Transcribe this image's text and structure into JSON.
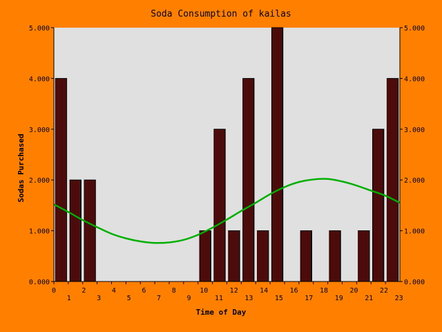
{
  "chart_data": {
    "type": "bar",
    "title": "Soda Consumption of kailas",
    "xlabel": "Time of Day",
    "ylabel": "Sodas Purchased",
    "x_tick_labels": [
      "0",
      "1",
      "2",
      "3",
      "4",
      "5",
      "6",
      "7",
      "8",
      "9",
      "10",
      "11",
      "12",
      "13",
      "14",
      "15",
      "16",
      "17",
      "18",
      "19",
      "20",
      "21",
      "22",
      "23"
    ],
    "y_tick_labels": [
      "0.000",
      "1.000",
      "2.000",
      "3.000",
      "4.000",
      "5.000"
    ],
    "ylim": [
      0,
      5
    ],
    "grid": false,
    "series": [
      {
        "type": "bar",
        "x": [
          0,
          1,
          2,
          3,
          4,
          5,
          6,
          7,
          8,
          9,
          10,
          11,
          12,
          13,
          14,
          15,
          16,
          17,
          18,
          19,
          20,
          21,
          22,
          23
        ],
        "values": [
          4,
          2,
          2,
          0,
          0,
          0,
          0,
          0,
          0,
          0,
          1,
          3,
          1,
          4,
          1,
          5,
          0,
          1,
          0,
          1,
          0,
          1,
          3,
          4
        ]
      },
      {
        "type": "line",
        "x": [
          0,
          1,
          2,
          3,
          4,
          5,
          6,
          7,
          8,
          9,
          10,
          11,
          12,
          13,
          14,
          15,
          16,
          17,
          18,
          19,
          20,
          21,
          22,
          23,
          24
        ],
        "values": [
          1.52,
          1.37,
          1.21,
          1.07,
          0.94,
          0.85,
          0.79,
          0.76,
          0.77,
          0.82,
          0.92,
          1.06,
          1.22,
          1.39,
          1.55,
          1.72,
          1.86,
          1.96,
          2.01,
          2.02,
          1.97,
          1.89,
          1.79,
          1.69,
          1.55
        ]
      }
    ],
    "colors": {
      "background": "#ff8000",
      "plot_area": "#e0e0e0",
      "bar_fill": "#990000",
      "bar_stripe": "#000000",
      "line": "#00b000"
    }
  }
}
